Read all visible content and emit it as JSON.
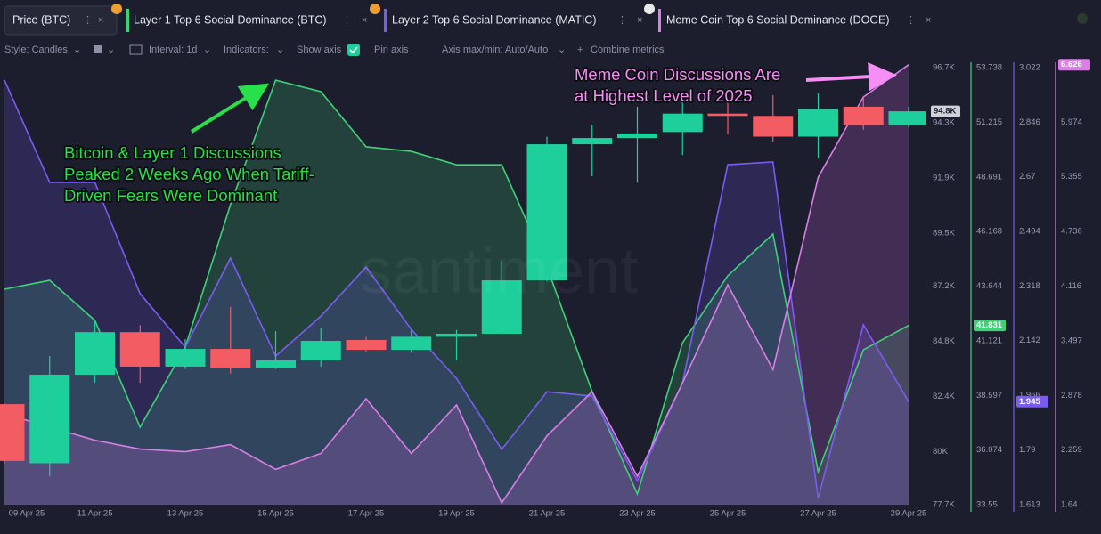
{
  "toolbar": {
    "tabs": [
      "Price (BTC)",
      "Layer 1 Top 6 Social Dominance (BTC)",
      "Layer 2 Top 6 Social Dominance (MATIC)",
      "Meme Coin Top 6 Social Dominance (DOGE)"
    ],
    "controls": [
      "Style: Candles",
      "Interval: 1d",
      "Indicators:",
      "Show axis",
      "Pin axis",
      "Axis max/min: Auto/Auto",
      "Combine metrics"
    ]
  },
  "chart_data": {
    "type": "candlestick",
    "watermark": "santiment",
    "categories": [
      "09 Apr 25",
      null,
      "11 Apr 25",
      null,
      "13 Apr 25",
      null,
      "15 Apr 25",
      null,
      "17 Apr 25",
      null,
      "19 Apr 25",
      null,
      "21 Apr 25",
      null,
      "23 Apr 25",
      null,
      "25 Apr 25",
      null,
      "27 Apr 25",
      null,
      "29 Apr 25"
    ],
    "price": {
      "name": "Price (BTC)",
      "up_color": "#1fcf9b",
      "down_color": "#f25c62",
      "open": [
        82.07,
        79.5,
        83.35,
        85.2,
        83.7,
        84.47,
        83.66,
        83.97,
        84.86,
        84.43,
        85,
        85.13,
        87.45,
        93.37,
        93.64,
        93.9,
        94.7,
        94.6,
        93.7,
        95,
        94.2
      ],
      "high": [
        82.1,
        84.16,
        85.7,
        85.5,
        84.9,
        86.3,
        85.25,
        85.4,
        85,
        85.3,
        85.3,
        88.3,
        93.7,
        94.2,
        95,
        95.2,
        95.8,
        95.5,
        95.6,
        95.4,
        95
      ],
      "low": [
        79.5,
        78.94,
        83,
        83,
        83.6,
        83.4,
        83.6,
        83.7,
        84.36,
        84.3,
        83.97,
        85.1,
        87.4,
        91.98,
        91.7,
        92.9,
        93.8,
        93.45,
        92.75,
        94,
        94.1
      ],
      "close": [
        79.6,
        83.35,
        85.2,
        83.7,
        84.47,
        83.66,
        83.97,
        84.82,
        84.43,
        85,
        85.13,
        87.45,
        93.37,
        93.64,
        93.84,
        94.7,
        94.6,
        93.7,
        94.9,
        94.2,
        94.8
      ],
      "badge": {
        "value": 94.8,
        "label": "94.8K"
      },
      "ylim": [
        77.7,
        96.7
      ],
      "yticks": [
        {
          "value": 96.7,
          "label": "96.7K"
        },
        {
          "value": 94.3,
          "label": "94.3K"
        },
        {
          "value": 91.9,
          "label": "91.9K"
        },
        {
          "value": 89.5,
          "label": "89.5K"
        },
        {
          "value": 87.2,
          "label": "87.2K"
        },
        {
          "value": 84.8,
          "label": "84.8K"
        },
        {
          "value": 82.4,
          "label": "82.4K"
        },
        {
          "value": 80,
          "label": "80K"
        },
        {
          "value": 77.7,
          "label": "77.7K"
        }
      ]
    },
    "series": [
      {
        "name": "Layer 1 Top 6 Social Dominance (BTC)",
        "color": "#3fd178",
        "fill": "rgba(60,200,110,0.22)",
        "values": [
          43.5,
          43.91,
          42.06,
          37.13,
          40.83,
          47.41,
          53.16,
          52.63,
          50.08,
          49.87,
          49.25,
          49.25,
          44.53,
          38.77,
          34.04,
          41.03,
          44.12,
          46.05,
          35.07,
          40.7,
          41.831
        ],
        "ylim": [
          33.55,
          53.738
        ],
        "yticks": [
          53.738,
          51.215,
          48.691,
          46.168,
          43.644,
          41.121,
          38.597,
          36.074,
          33.55
        ]
      },
      {
        "name": "Layer 2 Top 6 Social Dominance (MATIC)",
        "color": "#7a5cf0",
        "fill": "rgba(110,80,225,0.22)",
        "values": [
          2.982,
          2.652,
          2.652,
          2.293,
          2.121,
          2.408,
          2.092,
          2.221,
          2.379,
          2.178,
          2.02,
          1.791,
          1.977,
          1.963,
          1.69,
          2.006,
          2.709,
          2.718,
          1.633,
          2.193,
          1.945
        ],
        "ylim": [
          1.613,
          3.022
        ],
        "yticks": [
          3.022,
          2.846,
          2.67,
          2.494,
          2.318,
          2.142,
          1.966,
          1.79,
          1.613
        ]
      },
      {
        "name": "Meme Coin Top 6 Social Dominance (DOGE)",
        "color": "#d97fe6",
        "fill": "rgba(205,105,225,0.22)",
        "values": [
          2.67,
          2.52,
          2.37,
          2.27,
          2.24,
          2.32,
          2.04,
          2.22,
          2.84,
          2.22,
          2.77,
          1.66,
          2.42,
          2.92,
          1.96,
          3.02,
          4.13,
          3.17,
          5.35,
          6.26,
          6.626
        ],
        "ylim": [
          1.64,
          6.593
        ],
        "yticks": [
          5.974,
          5.355,
          4.736,
          4.116,
          3.497,
          2.878,
          2.259,
          1.64
        ]
      }
    ],
    "annotations": [
      {
        "color": "#27e04a",
        "lines": [
          "Bitcoin & Layer 1 Discussions",
          "Peaked 2 Weeks Ago When Tariff-",
          "Driven Fears Were Dominant"
        ]
      },
      {
        "color": "#f58ef5",
        "lines": [
          "Meme Coin Discussions Are",
          "at Highest Level of 2025"
        ]
      }
    ]
  }
}
